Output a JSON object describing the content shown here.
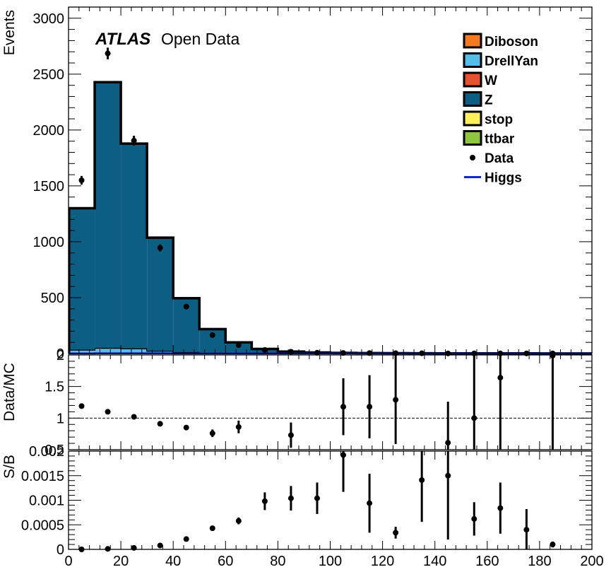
{
  "chart_data": {
    "type": "stacked-histogram",
    "x": {
      "tick_labels": [
        "0",
        "20",
        "40",
        "60",
        "80",
        "100",
        "120",
        "140",
        "160",
        "180",
        "200"
      ],
      "bin_edges": [
        0,
        10,
        20,
        30,
        40,
        50,
        60,
        70,
        80,
        90,
        100,
        110,
        120,
        130,
        140,
        150,
        160,
        170,
        180,
        190,
        200
      ],
      "bin_centers": [
        5,
        15,
        25,
        35,
        45,
        55,
        65,
        75,
        85,
        95,
        105,
        115,
        125,
        135,
        145,
        155,
        165,
        175,
        185,
        195
      ],
      "range": [
        0,
        200
      ]
    },
    "main": {
      "ylabel": "Events",
      "ylim": [
        0,
        3100
      ],
      "yticks": [
        0,
        500,
        1000,
        1500,
        2000,
        2500,
        3000
      ],
      "ytick_labels": [
        "0",
        "500",
        "1000",
        "1500",
        "2000",
        "2500",
        "3000"
      ],
      "label_atlas": "ATLAS",
      "label_open": "Open Data",
      "background_stack": [
        {
          "name": "Diboson",
          "color": "#f47a20",
          "values": [
            3,
            4,
            4,
            3,
            2,
            2,
            1,
            1,
            1,
            1,
            0.5,
            0.5,
            0.5,
            0.5,
            0.3,
            0.3,
            0.3,
            0.2,
            0.2,
            0.2
          ]
        },
        {
          "name": "DrellYan",
          "color": "#56bde8",
          "values": [
            30,
            45,
            40,
            20,
            10,
            5,
            3,
            2,
            1,
            1,
            0.5,
            0.5,
            0.5,
            0.3,
            0.3,
            0.3,
            0.2,
            0.2,
            0.2,
            0.1
          ]
        },
        {
          "name": "W",
          "color": "#e5522e",
          "values": [
            1,
            2,
            2,
            1,
            1,
            0.5,
            0.5,
            0.3,
            0.3,
            0.2,
            0.2,
            0.1,
            0.1,
            0.1,
            0.1,
            0.1,
            0.1,
            0.1,
            0.1,
            0.1
          ]
        },
        {
          "name": "Z",
          "color": "#0c5f82",
          "values": [
            1266,
            2377,
            1832,
            1013,
            482,
            211,
            95,
            38,
            15,
            7,
            4,
            3,
            2,
            1.5,
            1,
            1,
            1,
            0.8,
            0.6,
            0.5
          ]
        },
        {
          "name": "stop",
          "color": "#ffef5a",
          "values": [
            1,
            1,
            1,
            1,
            1,
            0.5,
            0.5,
            0.3,
            0.3,
            0.2,
            0.2,
            0.1,
            0.1,
            0.1,
            0.1,
            0.1,
            0.1,
            0.1,
            0.1,
            0.1
          ]
        },
        {
          "name": "ttbar",
          "color": "#8dc63f",
          "values": [
            2,
            3,
            3,
            3,
            3,
            3,
            2,
            2,
            2,
            1,
            1,
            1,
            1,
            1,
            0.5,
            0.5,
            0.5,
            0.5,
            0.3,
            0.3
          ]
        }
      ],
      "data": {
        "name": "Data",
        "values": [
          1550,
          2685,
          1905,
          945,
          420,
          165,
          75,
          32,
          16,
          7,
          5,
          4,
          3,
          2,
          1,
          1,
          1,
          1,
          1,
          0
        ],
        "errors": [
          39,
          52,
          44,
          31,
          20,
          13,
          9,
          6,
          4,
          3,
          2,
          2,
          2,
          1,
          1,
          1,
          1,
          1,
          1,
          0
        ]
      },
      "higgs": {
        "name": "Higgs",
        "color": "#1428d2",
        "values": [
          1,
          2,
          2,
          2,
          1,
          1,
          1,
          1,
          1,
          1,
          1,
          1,
          1,
          1,
          1,
          1,
          1,
          1,
          1,
          1
        ]
      },
      "legend_placement": "top-right"
    },
    "ratio": {
      "ylabel": "Data/MC",
      "ylim": [
        0.5,
        2
      ],
      "yticks": [
        0.5,
        1,
        1.5,
        2
      ],
      "ytick_labels": [
        "0.5",
        "1",
        "1.5",
        "2"
      ],
      "reference_line": 1,
      "points": [
        {
          "x": 5,
          "y": 1.19,
          "err": 0.03
        },
        {
          "x": 15,
          "y": 1.1,
          "err": 0.03
        },
        {
          "x": 25,
          "y": 1.02,
          "err": 0.03
        },
        {
          "x": 35,
          "y": 0.91,
          "err": 0.03
        },
        {
          "x": 45,
          "y": 0.85,
          "err": 0.04
        },
        {
          "x": 55,
          "y": 0.76,
          "err": 0.06
        },
        {
          "x": 65,
          "y": 0.86,
          "err": 0.1
        },
        {
          "x": 85,
          "y": 0.73,
          "err": 0.2
        },
        {
          "x": 105,
          "y": 1.18,
          "err": 0.45
        },
        {
          "x": 115,
          "y": 1.18,
          "err": 0.5
        },
        {
          "x": 125,
          "y": 1.29,
          "err": 0.7
        },
        {
          "x": 145,
          "y": 0.61,
          "err": 0.65
        },
        {
          "x": 155,
          "y": 1.0,
          "err": 1.0
        },
        {
          "x": 165,
          "y": 1.64,
          "err": 1.2
        },
        {
          "x": 185,
          "y": 1.99,
          "err": 1.5
        }
      ]
    },
    "sb": {
      "ylabel": "S/B",
      "ylim": [
        0,
        0.002
      ],
      "yticks": [
        0,
        0.0005,
        0.001,
        0.0015,
        0.002
      ],
      "ytick_labels": [
        "0",
        "0.0005",
        "0.001",
        "0.0015",
        "0.002"
      ],
      "points": [
        {
          "x": 5,
          "y": 0.0,
          "err": 0.0
        },
        {
          "x": 15,
          "y": 1e-05,
          "err": 0.0
        },
        {
          "x": 25,
          "y": 3e-05,
          "err": 0.0
        },
        {
          "x": 35,
          "y": 8e-05,
          "err": 1e-05
        },
        {
          "x": 45,
          "y": 0.00021,
          "err": 2e-05
        },
        {
          "x": 55,
          "y": 0.00043,
          "err": 3e-05
        },
        {
          "x": 65,
          "y": 0.00058,
          "err": 7e-05
        },
        {
          "x": 75,
          "y": 0.00098,
          "err": 0.00018
        },
        {
          "x": 85,
          "y": 0.00104,
          "err": 0.00025
        },
        {
          "x": 95,
          "y": 0.00104,
          "err": 0.00032
        },
        {
          "x": 105,
          "y": 0.00192,
          "err": 0.00075
        },
        {
          "x": 115,
          "y": 0.00094,
          "err": 0.0006
        },
        {
          "x": 125,
          "y": 0.00034,
          "err": 0.00012
        },
        {
          "x": 135,
          "y": 0.00141,
          "err": 0.00085
        },
        {
          "x": 145,
          "y": 0.0015,
          "err": 0.0013
        },
        {
          "x": 155,
          "y": 0.00062,
          "err": 0.00034
        },
        {
          "x": 165,
          "y": 0.00084,
          "err": 0.00052
        },
        {
          "x": 175,
          "y": 0.0004,
          "err": 0.00042
        },
        {
          "x": 185,
          "y": 0.0001,
          "err": 6e-05
        }
      ]
    }
  }
}
